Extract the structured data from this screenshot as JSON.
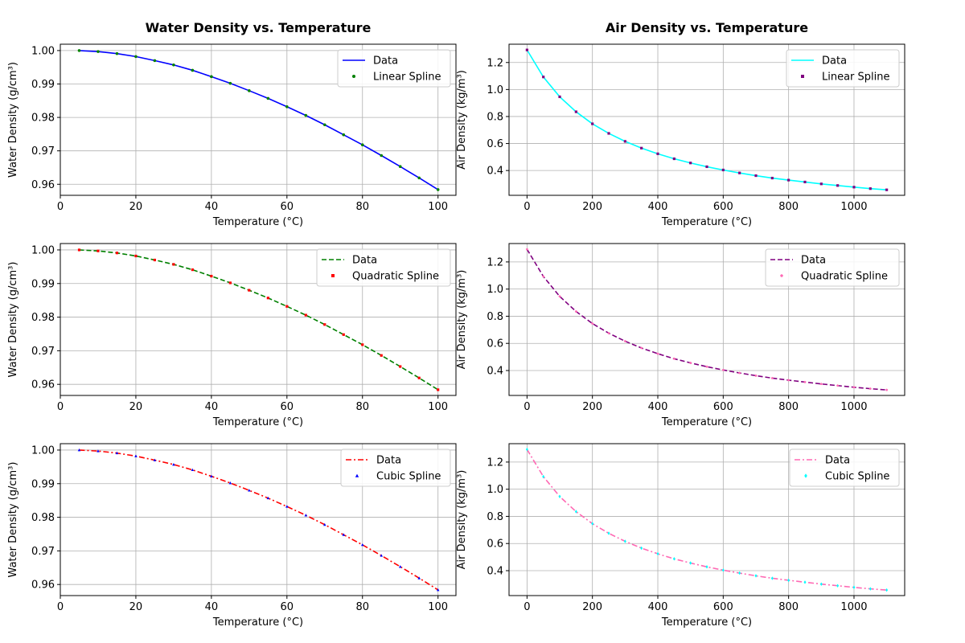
{
  "chart_data": [
    {
      "id": "water-linear",
      "type": "line",
      "title": "Water Density vs. Temperature",
      "xlabel": "Temperature (°C)",
      "ylabel": "Water Density (g/cm³)",
      "xlim": [
        0,
        104.75
      ],
      "ylim": [
        0.9567,
        1.0019
      ],
      "xticks": [
        0,
        20,
        40,
        60,
        80,
        100
      ],
      "yticks": [
        0.96,
        0.97,
        0.98,
        0.99,
        1.0
      ],
      "ytick_labels": [
        "0.96",
        "0.97",
        "0.98",
        "0.99",
        "1.00"
      ],
      "grid": true,
      "legend_position": "top-right",
      "series": [
        {
          "name": "Data",
          "kind": "line",
          "linestyle": "solid",
          "color": "#0000ff",
          "x": [
            5,
            10,
            15,
            20,
            25,
            30,
            35,
            40,
            45,
            50,
            55,
            60,
            65,
            70,
            75,
            80,
            85,
            90,
            95,
            100
          ],
          "y": [
            1.0,
            0.9997,
            0.9991,
            0.9982,
            0.997,
            0.9957,
            0.9941,
            0.9922,
            0.9902,
            0.988,
            0.9857,
            0.9832,
            0.9806,
            0.9778,
            0.9748,
            0.9718,
            0.9686,
            0.9653,
            0.9619,
            0.9584
          ]
        },
        {
          "name": "Linear Spline",
          "kind": "scatter",
          "marker": "circle",
          "color": "#008000",
          "x": [
            5,
            10,
            15,
            20,
            25,
            30,
            35,
            40,
            45,
            50,
            55,
            60,
            65,
            70,
            75,
            80,
            85,
            90,
            95,
            100
          ],
          "y": [
            1.0,
            0.9997,
            0.9991,
            0.9982,
            0.997,
            0.9957,
            0.9941,
            0.9922,
            0.9902,
            0.988,
            0.9857,
            0.9832,
            0.9806,
            0.9778,
            0.9748,
            0.9718,
            0.9686,
            0.9653,
            0.9619,
            0.9584
          ]
        }
      ]
    },
    {
      "id": "air-linear",
      "type": "line",
      "title": "Air Density vs. Temperature",
      "xlabel": "Temperature (°C)",
      "ylabel": "Air Density (kg/m³)",
      "xlim": [
        -55,
        1155
      ],
      "ylim": [
        0.2164,
        1.3355
      ],
      "xticks": [
        0,
        200,
        400,
        600,
        800,
        1000
      ],
      "yticks": [
        0.4,
        0.6,
        0.8,
        1.0,
        1.2
      ],
      "ytick_labels": [
        "0.4",
        "0.6",
        "0.8",
        "1.0",
        "1.2"
      ],
      "grid": true,
      "legend_position": "top-right",
      "series": [
        {
          "name": "Data",
          "kind": "line",
          "linestyle": "solid",
          "color": "#00ffff",
          "x": [
            0,
            50,
            100,
            150,
            200,
            250,
            300,
            350,
            400,
            450,
            500,
            550,
            600,
            650,
            700,
            750,
            800,
            850,
            900,
            950,
            1000,
            1050,
            1100
          ],
          "y": [
            1.293,
            1.093,
            0.946,
            0.835,
            0.746,
            0.675,
            0.616,
            0.566,
            0.524,
            0.487,
            0.456,
            0.428,
            0.404,
            0.382,
            0.362,
            0.344,
            0.329,
            0.315,
            0.301,
            0.289,
            0.277,
            0.266,
            0.257
          ]
        },
        {
          "name": "Linear Spline",
          "kind": "scatter",
          "marker": "square",
          "color": "#800080",
          "x": [
            0,
            50,
            100,
            150,
            200,
            250,
            300,
            350,
            400,
            450,
            500,
            550,
            600,
            650,
            700,
            750,
            800,
            850,
            900,
            950,
            1000,
            1050,
            1100
          ],
          "y": [
            1.293,
            1.093,
            0.946,
            0.835,
            0.746,
            0.675,
            0.616,
            0.566,
            0.524,
            0.487,
            0.456,
            0.428,
            0.404,
            0.382,
            0.362,
            0.344,
            0.329,
            0.315,
            0.301,
            0.289,
            0.277,
            0.266,
            0.257
          ]
        }
      ]
    },
    {
      "id": "water-quadratic",
      "type": "line",
      "title": "",
      "xlabel": "Temperature (°C)",
      "ylabel": "Water Density (g/cm³)",
      "xlim": [
        0,
        104.75
      ],
      "ylim": [
        0.9567,
        1.0019
      ],
      "xticks": [
        0,
        20,
        40,
        60,
        80,
        100
      ],
      "yticks": [
        0.96,
        0.97,
        0.98,
        0.99,
        1.0
      ],
      "ytick_labels": [
        "0.96",
        "0.97",
        "0.98",
        "0.99",
        "1.00"
      ],
      "grid": true,
      "legend_position": "top-right",
      "series": [
        {
          "name": "Data",
          "kind": "line",
          "linestyle": "dashed",
          "color": "#008000",
          "x": [
            5,
            10,
            15,
            20,
            25,
            30,
            35,
            40,
            45,
            50,
            55,
            60,
            65,
            70,
            75,
            80,
            85,
            90,
            95,
            100
          ],
          "y": [
            1.0,
            0.9997,
            0.9991,
            0.9982,
            0.997,
            0.9957,
            0.9941,
            0.9922,
            0.9902,
            0.988,
            0.9857,
            0.9832,
            0.9806,
            0.9778,
            0.9748,
            0.9718,
            0.9686,
            0.9653,
            0.9619,
            0.9584
          ]
        },
        {
          "name": "Quadratic Spline",
          "kind": "scatter",
          "marker": "square",
          "color": "#ff0000",
          "x": [
            5,
            10,
            15,
            20,
            25,
            30,
            35,
            40,
            45,
            50,
            55,
            60,
            65,
            70,
            75,
            80,
            85,
            90,
            95,
            100
          ],
          "y": [
            1.0,
            0.9997,
            0.9991,
            0.9982,
            0.997,
            0.9957,
            0.9941,
            0.9922,
            0.9902,
            0.988,
            0.9857,
            0.9832,
            0.9806,
            0.9778,
            0.9748,
            0.9718,
            0.9686,
            0.9653,
            0.9619,
            0.9584
          ]
        }
      ]
    },
    {
      "id": "air-quadratic",
      "type": "line",
      "title": "",
      "xlabel": "Temperature (°C)",
      "ylabel": "Air Density (kg/m³)",
      "xlim": [
        -55,
        1155
      ],
      "ylim": [
        0.2164,
        1.3355
      ],
      "xticks": [
        0,
        200,
        400,
        600,
        800,
        1000
      ],
      "yticks": [
        0.4,
        0.6,
        0.8,
        1.0,
        1.2
      ],
      "ytick_labels": [
        "0.4",
        "0.6",
        "0.8",
        "1.0",
        "1.2"
      ],
      "grid": true,
      "legend_position": "top-right",
      "series": [
        {
          "name": "Data",
          "kind": "line",
          "linestyle": "dashed",
          "color": "#800080",
          "x": [
            0,
            50,
            100,
            150,
            200,
            250,
            300,
            350,
            400,
            450,
            500,
            550,
            600,
            650,
            700,
            750,
            800,
            850,
            900,
            950,
            1000,
            1050,
            1100
          ],
          "y": [
            1.293,
            1.093,
            0.946,
            0.835,
            0.746,
            0.675,
            0.616,
            0.566,
            0.524,
            0.487,
            0.456,
            0.428,
            0.404,
            0.382,
            0.362,
            0.344,
            0.329,
            0.315,
            0.301,
            0.289,
            0.277,
            0.266,
            0.257
          ]
        },
        {
          "name": "Quadratic Spline",
          "kind": "scatter",
          "marker": "pentagon",
          "color": "#ff69b4",
          "x": [
            0,
            50,
            100,
            150,
            200,
            250,
            300,
            350,
            400,
            450,
            500,
            550,
            600,
            650,
            700,
            750,
            800,
            850,
            900,
            950,
            1000,
            1050,
            1100
          ],
          "y": [
            1.293,
            1.093,
            0.946,
            0.835,
            0.746,
            0.675,
            0.616,
            0.566,
            0.524,
            0.487,
            0.456,
            0.428,
            0.404,
            0.382,
            0.362,
            0.344,
            0.329,
            0.315,
            0.301,
            0.289,
            0.277,
            0.266,
            0.257
          ]
        }
      ]
    },
    {
      "id": "water-cubic",
      "type": "line",
      "title": "",
      "xlabel": "Temperature (°C)",
      "ylabel": "Water Density (g/cm³)",
      "xlim": [
        0,
        104.75
      ],
      "ylim": [
        0.9567,
        1.0019
      ],
      "xticks": [
        0,
        20,
        40,
        60,
        80,
        100
      ],
      "yticks": [
        0.96,
        0.97,
        0.98,
        0.99,
        1.0
      ],
      "ytick_labels": [
        "0.96",
        "0.97",
        "0.98",
        "0.99",
        "1.00"
      ],
      "grid": true,
      "legend_position": "top-right",
      "series": [
        {
          "name": "Data",
          "kind": "line",
          "linestyle": "dashdot",
          "color": "#ff0000",
          "x": [
            5,
            10,
            15,
            20,
            25,
            30,
            35,
            40,
            45,
            50,
            55,
            60,
            65,
            70,
            75,
            80,
            85,
            90,
            95,
            100
          ],
          "y": [
            1.0,
            0.9997,
            0.9991,
            0.9982,
            0.997,
            0.9957,
            0.9941,
            0.9922,
            0.9902,
            0.988,
            0.9857,
            0.9832,
            0.9806,
            0.9778,
            0.9748,
            0.9718,
            0.9686,
            0.9653,
            0.9619,
            0.9584
          ]
        },
        {
          "name": "Cubic Spline",
          "kind": "scatter",
          "marker": "triangle",
          "color": "#0000ff",
          "x": [
            5,
            10,
            15,
            20,
            25,
            30,
            35,
            40,
            45,
            50,
            55,
            60,
            65,
            70,
            75,
            80,
            85,
            90,
            95,
            100
          ],
          "y": [
            1.0,
            0.9997,
            0.9991,
            0.9982,
            0.997,
            0.9957,
            0.9941,
            0.9922,
            0.9902,
            0.988,
            0.9857,
            0.9832,
            0.9806,
            0.9778,
            0.9748,
            0.9718,
            0.9686,
            0.9653,
            0.9619,
            0.9584
          ]
        }
      ]
    },
    {
      "id": "air-cubic",
      "type": "line",
      "title": "",
      "xlabel": "Temperature (°C)",
      "ylabel": "Air Density (kg/m³)",
      "xlim": [
        -55,
        1155
      ],
      "ylim": [
        0.2164,
        1.3355
      ],
      "xticks": [
        0,
        200,
        400,
        600,
        800,
        1000
      ],
      "yticks": [
        0.4,
        0.6,
        0.8,
        1.0,
        1.2
      ],
      "ytick_labels": [
        "0.4",
        "0.6",
        "0.8",
        "1.0",
        "1.2"
      ],
      "grid": true,
      "legend_position": "top-right",
      "series": [
        {
          "name": "Data",
          "kind": "line",
          "linestyle": "dashdot",
          "color": "#ff69b4",
          "x": [
            0,
            50,
            100,
            150,
            200,
            250,
            300,
            350,
            400,
            450,
            500,
            550,
            600,
            650,
            700,
            750,
            800,
            850,
            900,
            950,
            1000,
            1050,
            1100
          ],
          "y": [
            1.293,
            1.093,
            0.946,
            0.835,
            0.746,
            0.675,
            0.616,
            0.566,
            0.524,
            0.487,
            0.456,
            0.428,
            0.404,
            0.382,
            0.362,
            0.344,
            0.329,
            0.315,
            0.301,
            0.289,
            0.277,
            0.266,
            0.257
          ]
        },
        {
          "name": "Cubic Spline",
          "kind": "scatter",
          "marker": "diamond",
          "color": "#00ffff",
          "x": [
            0,
            50,
            100,
            150,
            200,
            250,
            300,
            350,
            400,
            450,
            500,
            550,
            600,
            650,
            700,
            750,
            800,
            850,
            900,
            950,
            1000,
            1050,
            1100
          ],
          "y": [
            1.293,
            1.093,
            0.946,
            0.835,
            0.746,
            0.675,
            0.616,
            0.566,
            0.524,
            0.487,
            0.456,
            0.428,
            0.404,
            0.382,
            0.362,
            0.344,
            0.329,
            0.315,
            0.301,
            0.289,
            0.277,
            0.266,
            0.257
          ]
        }
      ]
    }
  ]
}
